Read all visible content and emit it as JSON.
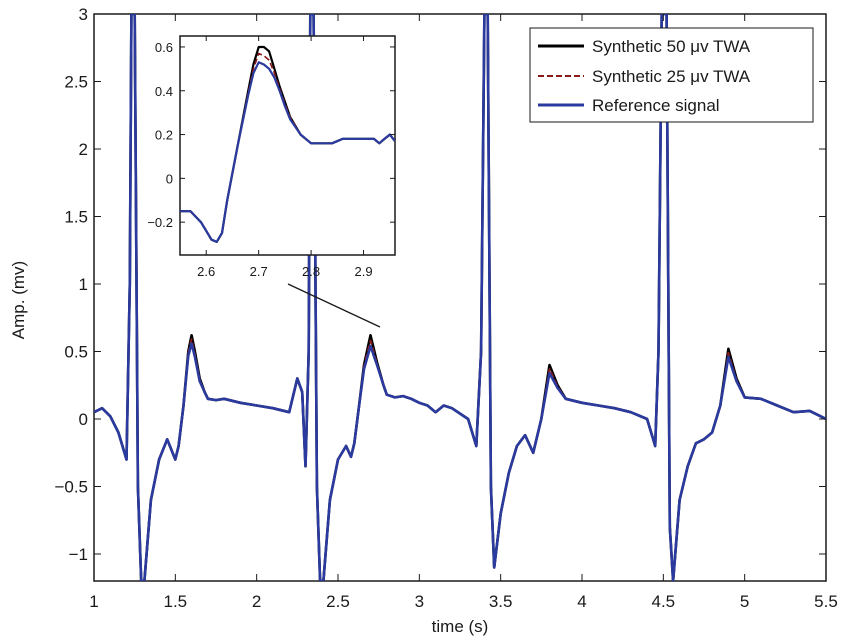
{
  "chart_data": [
    {
      "type": "line",
      "title": "",
      "xlabel": "time (s)",
      "ylabel": "Amp. (mv)",
      "xlim": [
        1,
        5.5
      ],
      "ylim": [
        -1.2,
        3
      ],
      "xticks": [
        1,
        1.5,
        2,
        2.5,
        3,
        3.5,
        4,
        4.5,
        5,
        5.5
      ],
      "xtick_labels": [
        "1",
        "1.5",
        "2",
        "2.5",
        "3",
        "3.5",
        "4",
        "4.5",
        "5",
        "5.5"
      ],
      "yticks": [
        -1,
        -0.5,
        0,
        0.5,
        1,
        1.5,
        2,
        2.5,
        3
      ],
      "ytick_labels": [
        "−1",
        "−0.5",
        "0",
        "0.5",
        "1",
        "1.5",
        "2",
        "2.5",
        "3"
      ],
      "legend_position": "top-right",
      "grid": false,
      "series": [
        {
          "name": "Synthetic 50 μv TWA",
          "color": "#000000",
          "dash": "solid",
          "x": [
            1.0,
            1.05,
            1.1,
            1.15,
            1.2,
            1.22,
            1.23,
            1.25,
            1.27,
            1.29,
            1.31,
            1.35,
            1.4,
            1.45,
            1.5,
            1.52,
            1.55,
            1.58,
            1.6,
            1.62,
            1.65,
            1.68,
            1.7,
            1.75,
            1.8,
            1.9,
            2.0,
            2.1,
            2.2,
            2.25,
            2.28,
            2.3,
            2.32,
            2.33,
            2.35,
            2.37,
            2.39,
            2.41,
            2.45,
            2.5,
            2.55,
            2.58,
            2.6,
            2.63,
            2.66,
            2.7,
            2.74,
            2.78,
            2.8,
            2.85,
            2.9,
            2.95,
            3.0,
            3.05,
            3.1,
            3.15,
            3.2,
            3.3,
            3.35,
            3.38,
            3.4,
            3.42,
            3.44,
            3.46,
            3.5,
            3.55,
            3.6,
            3.65,
            3.7,
            3.75,
            3.8,
            3.85,
            3.9,
            4.0,
            4.1,
            4.2,
            4.3,
            4.4,
            4.45,
            4.47,
            4.49,
            4.52,
            4.54,
            4.56,
            4.6,
            4.65,
            4.7,
            4.75,
            4.8,
            4.85,
            4.9,
            4.95,
            5.0,
            5.1,
            5.2,
            5.3,
            5.4,
            5.5
          ],
          "y": [
            0.05,
            0.08,
            0.02,
            -0.1,
            -0.3,
            1.0,
            3.0,
            3.0,
            -0.5,
            -1.2,
            -1.2,
            -0.6,
            -0.3,
            -0.15,
            -0.3,
            -0.2,
            0.1,
            0.5,
            0.62,
            0.5,
            0.3,
            0.2,
            0.15,
            0.14,
            0.15,
            0.12,
            0.1,
            0.08,
            0.05,
            0.3,
            0.2,
            -0.35,
            0.5,
            3.0,
            3.0,
            -0.5,
            -1.2,
            -1.2,
            -0.6,
            -0.3,
            -0.2,
            -0.28,
            -0.18,
            0.1,
            0.4,
            0.62,
            0.42,
            0.25,
            0.18,
            0.16,
            0.17,
            0.15,
            0.12,
            0.1,
            0.05,
            0.1,
            0.08,
            0.0,
            -0.2,
            0.5,
            3.0,
            3.0,
            -0.5,
            -1.1,
            -0.7,
            -0.4,
            -0.2,
            -0.12,
            -0.25,
            0.0,
            0.4,
            0.25,
            0.15,
            0.12,
            0.1,
            0.08,
            0.05,
            0.0,
            -0.2,
            0.5,
            3.0,
            3.0,
            -0.8,
            -1.2,
            -0.6,
            -0.35,
            -0.18,
            -0.15,
            -0.1,
            0.1,
            0.52,
            0.3,
            0.16,
            0.15,
            0.1,
            0.05,
            0.06,
            0.0
          ]
        },
        {
          "name": "Synthetic 25 μv TWA",
          "color": "#8b1a1a",
          "dash": "dashed",
          "x": [
            1.0,
            1.05,
            1.1,
            1.15,
            1.2,
            1.22,
            1.23,
            1.25,
            1.27,
            1.29,
            1.31,
            1.35,
            1.4,
            1.45,
            1.5,
            1.52,
            1.55,
            1.58,
            1.6,
            1.62,
            1.65,
            1.68,
            1.7,
            1.75,
            1.8,
            1.9,
            2.0,
            2.1,
            2.2,
            2.25,
            2.28,
            2.3,
            2.32,
            2.33,
            2.35,
            2.37,
            2.39,
            2.41,
            2.45,
            2.5,
            2.55,
            2.58,
            2.6,
            2.63,
            2.66,
            2.7,
            2.74,
            2.78,
            2.8,
            2.85,
            2.9,
            2.95,
            3.0,
            3.05,
            3.1,
            3.15,
            3.2,
            3.3,
            3.35,
            3.38,
            3.4,
            3.42,
            3.44,
            3.46,
            3.5,
            3.55,
            3.6,
            3.65,
            3.7,
            3.75,
            3.8,
            3.85,
            3.9,
            4.0,
            4.1,
            4.2,
            4.3,
            4.4,
            4.45,
            4.47,
            4.49,
            4.52,
            4.54,
            4.56,
            4.6,
            4.65,
            4.7,
            4.75,
            4.8,
            4.85,
            4.9,
            4.95,
            5.0,
            5.1,
            5.2,
            5.3,
            5.4,
            5.5
          ],
          "y": [
            0.05,
            0.08,
            0.02,
            -0.1,
            -0.3,
            1.0,
            3.0,
            3.0,
            -0.5,
            -1.2,
            -1.2,
            -0.6,
            -0.3,
            -0.15,
            -0.3,
            -0.2,
            0.1,
            0.49,
            0.59,
            0.48,
            0.29,
            0.2,
            0.15,
            0.14,
            0.15,
            0.12,
            0.1,
            0.08,
            0.05,
            0.3,
            0.2,
            -0.35,
            0.5,
            3.0,
            3.0,
            -0.5,
            -1.2,
            -1.2,
            -0.6,
            -0.3,
            -0.2,
            -0.28,
            -0.18,
            0.1,
            0.39,
            0.58,
            0.41,
            0.25,
            0.18,
            0.16,
            0.17,
            0.15,
            0.12,
            0.1,
            0.05,
            0.1,
            0.08,
            0.0,
            -0.2,
            0.5,
            3.0,
            3.0,
            -0.5,
            -1.1,
            -0.7,
            -0.4,
            -0.2,
            -0.12,
            -0.25,
            0.0,
            0.37,
            0.24,
            0.15,
            0.12,
            0.1,
            0.08,
            0.05,
            0.0,
            -0.2,
            0.5,
            3.0,
            3.0,
            -0.8,
            -1.2,
            -0.6,
            -0.35,
            -0.18,
            -0.15,
            -0.1,
            0.1,
            0.49,
            0.29,
            0.16,
            0.15,
            0.1,
            0.05,
            0.06,
            0.0
          ]
        },
        {
          "name": "Reference signal",
          "color": "#2b3a9e",
          "dash": "solid",
          "x": [
            1.0,
            1.05,
            1.1,
            1.15,
            1.2,
            1.22,
            1.23,
            1.25,
            1.27,
            1.29,
            1.31,
            1.35,
            1.4,
            1.45,
            1.5,
            1.52,
            1.55,
            1.58,
            1.6,
            1.62,
            1.65,
            1.68,
            1.7,
            1.75,
            1.8,
            1.9,
            2.0,
            2.1,
            2.2,
            2.25,
            2.28,
            2.3,
            2.32,
            2.33,
            2.35,
            2.37,
            2.39,
            2.41,
            2.45,
            2.5,
            2.55,
            2.58,
            2.6,
            2.63,
            2.66,
            2.7,
            2.74,
            2.78,
            2.8,
            2.85,
            2.9,
            2.95,
            3.0,
            3.05,
            3.1,
            3.15,
            3.2,
            3.3,
            3.35,
            3.38,
            3.4,
            3.42,
            3.44,
            3.46,
            3.5,
            3.55,
            3.6,
            3.65,
            3.7,
            3.75,
            3.8,
            3.85,
            3.9,
            4.0,
            4.1,
            4.2,
            4.3,
            4.4,
            4.45,
            4.47,
            4.49,
            4.52,
            4.54,
            4.56,
            4.6,
            4.65,
            4.7,
            4.75,
            4.8,
            4.85,
            4.9,
            4.95,
            5.0,
            5.1,
            5.2,
            5.3,
            5.4,
            5.5
          ],
          "y": [
            0.05,
            0.08,
            0.02,
            -0.1,
            -0.3,
            1.0,
            3.0,
            3.0,
            -0.5,
            -1.2,
            -1.2,
            -0.6,
            -0.3,
            -0.15,
            -0.3,
            -0.2,
            0.1,
            0.47,
            0.56,
            0.46,
            0.28,
            0.2,
            0.15,
            0.14,
            0.15,
            0.12,
            0.1,
            0.08,
            0.05,
            0.3,
            0.2,
            -0.35,
            0.5,
            3.0,
            3.0,
            -0.5,
            -1.2,
            -1.2,
            -0.6,
            -0.3,
            -0.2,
            -0.28,
            -0.18,
            0.1,
            0.37,
            0.54,
            0.4,
            0.25,
            0.18,
            0.16,
            0.17,
            0.15,
            0.12,
            0.1,
            0.05,
            0.1,
            0.08,
            0.0,
            -0.2,
            0.5,
            3.0,
            3.0,
            -0.5,
            -1.1,
            -0.7,
            -0.4,
            -0.2,
            -0.12,
            -0.25,
            0.0,
            0.34,
            0.23,
            0.15,
            0.12,
            0.1,
            0.08,
            0.05,
            0.0,
            -0.2,
            0.5,
            3.0,
            3.0,
            -0.8,
            -1.2,
            -0.6,
            -0.35,
            -0.18,
            -0.15,
            -0.1,
            0.1,
            0.46,
            0.28,
            0.16,
            0.15,
            0.1,
            0.05,
            0.06,
            0.0
          ]
        }
      ]
    },
    {
      "type": "line",
      "title": "",
      "xlabel": "",
      "ylabel": "",
      "xlim": [
        2.55,
        2.96
      ],
      "ylim": [
        -0.35,
        0.65
      ],
      "xticks": [
        2.6,
        2.7,
        2.8,
        2.9
      ],
      "xtick_labels": [
        "2.6",
        "2.7",
        "2.8",
        "2.9"
      ],
      "yticks": [
        -0.2,
        0,
        0.2,
        0.4,
        0.6
      ],
      "ytick_labels": [
        "−0.2",
        "0",
        "0.2",
        "0.4",
        "0.6"
      ],
      "grid": false,
      "series": [
        {
          "color": "#000000",
          "dash": "solid",
          "x": [
            2.55,
            2.57,
            2.59,
            2.61,
            2.62,
            2.63,
            2.64,
            2.66,
            2.68,
            2.69,
            2.7,
            2.71,
            2.72,
            2.73,
            2.74,
            2.75,
            2.76,
            2.78,
            2.8,
            2.82,
            2.84,
            2.86,
            2.88,
            2.9,
            2.92,
            2.93,
            2.94,
            2.95,
            2.96
          ],
          "y": [
            -0.15,
            -0.15,
            -0.2,
            -0.28,
            -0.29,
            -0.25,
            -0.1,
            0.15,
            0.4,
            0.52,
            0.6,
            0.6,
            0.58,
            0.5,
            0.42,
            0.35,
            0.28,
            0.2,
            0.16,
            0.16,
            0.16,
            0.18,
            0.18,
            0.18,
            0.18,
            0.16,
            0.18,
            0.2,
            0.17
          ]
        },
        {
          "color": "#8b1a1a",
          "dash": "dashed",
          "x": [
            2.55,
            2.57,
            2.59,
            2.61,
            2.62,
            2.63,
            2.64,
            2.66,
            2.68,
            2.69,
            2.7,
            2.71,
            2.72,
            2.73,
            2.74,
            2.75,
            2.76,
            2.78,
            2.8,
            2.82,
            2.84,
            2.86,
            2.88,
            2.9,
            2.92,
            2.93,
            2.94,
            2.95,
            2.96
          ],
          "y": [
            -0.15,
            -0.15,
            -0.2,
            -0.28,
            -0.29,
            -0.25,
            -0.1,
            0.15,
            0.39,
            0.5,
            0.57,
            0.56,
            0.54,
            0.48,
            0.41,
            0.34,
            0.28,
            0.2,
            0.16,
            0.16,
            0.16,
            0.18,
            0.18,
            0.18,
            0.18,
            0.16,
            0.18,
            0.2,
            0.17
          ]
        },
        {
          "color": "#2b3a9e",
          "dash": "solid",
          "x": [
            2.55,
            2.57,
            2.59,
            2.61,
            2.62,
            2.63,
            2.64,
            2.66,
            2.68,
            2.69,
            2.7,
            2.71,
            2.72,
            2.73,
            2.74,
            2.75,
            2.76,
            2.78,
            2.8,
            2.82,
            2.84,
            2.86,
            2.88,
            2.9,
            2.92,
            2.93,
            2.94,
            2.95,
            2.96
          ],
          "y": [
            -0.15,
            -0.15,
            -0.2,
            -0.28,
            -0.29,
            -0.25,
            -0.1,
            0.15,
            0.38,
            0.48,
            0.53,
            0.52,
            0.5,
            0.46,
            0.4,
            0.33,
            0.27,
            0.2,
            0.16,
            0.16,
            0.16,
            0.18,
            0.18,
            0.18,
            0.18,
            0.16,
            0.18,
            0.2,
            0.17
          ]
        }
      ]
    }
  ]
}
